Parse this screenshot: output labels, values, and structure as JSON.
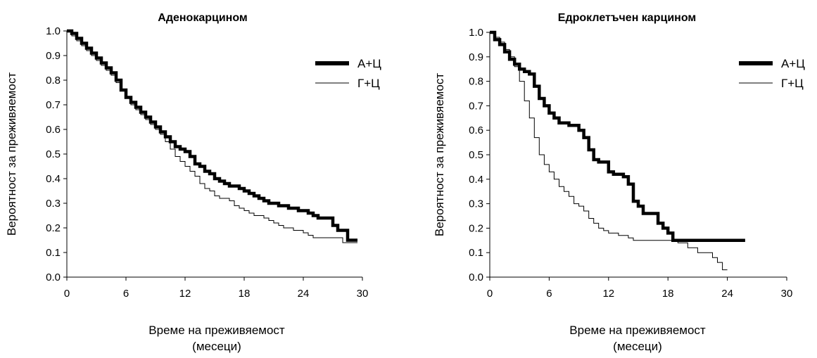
{
  "chart_data": [
    {
      "type": "line",
      "title": "Аденокарцином",
      "xlabel_line1": "Време на преживяемост",
      "xlabel_line2": "(месеци)",
      "ylabel": "Вероятност за преживяемост",
      "xlim": [
        0,
        30
      ],
      "ylim": [
        0.0,
        1.0
      ],
      "xticks": [
        0,
        6,
        12,
        18,
        24,
        30
      ],
      "yticks": [
        0.0,
        0.1,
        0.2,
        0.3,
        0.4,
        0.5,
        0.6,
        0.7,
        0.8,
        0.9,
        1.0
      ],
      "grid": false,
      "legend_position": "top-right",
      "series": [
        {
          "name": "А+Ц",
          "style": "thick",
          "color": "#000000",
          "x": [
            0,
            0.5,
            1.0,
            1.5,
            2,
            2.5,
            3,
            3.5,
            4,
            4.5,
            5,
            5.5,
            6,
            6.5,
            7,
            7.5,
            8,
            8.5,
            9,
            9.5,
            10,
            10.5,
            11,
            11.5,
            12,
            12.5,
            13,
            13.5,
            14,
            14.5,
            15,
            15.5,
            16,
            16.5,
            17,
            17.5,
            18,
            18.5,
            19,
            19.5,
            20,
            20.5,
            21,
            21.5,
            22,
            22.5,
            23,
            23.5,
            24,
            24.5,
            25,
            25.5,
            26,
            27,
            27.5,
            28,
            28.5,
            29,
            29.5
          ],
          "y": [
            1.0,
            0.99,
            0.97,
            0.95,
            0.93,
            0.91,
            0.89,
            0.87,
            0.85,
            0.83,
            0.8,
            0.76,
            0.73,
            0.71,
            0.69,
            0.67,
            0.65,
            0.63,
            0.61,
            0.59,
            0.57,
            0.55,
            0.53,
            0.52,
            0.51,
            0.49,
            0.46,
            0.45,
            0.43,
            0.42,
            0.4,
            0.39,
            0.38,
            0.37,
            0.37,
            0.36,
            0.35,
            0.34,
            0.33,
            0.32,
            0.31,
            0.3,
            0.3,
            0.29,
            0.29,
            0.28,
            0.28,
            0.27,
            0.27,
            0.26,
            0.25,
            0.24,
            0.24,
            0.21,
            0.19,
            0.19,
            0.15,
            0.15,
            0.15
          ]
        },
        {
          "name": "Г+Ц",
          "style": "thin",
          "color": "#000000",
          "x": [
            0,
            0.5,
            1.0,
            1.5,
            2,
            2.5,
            3,
            3.5,
            4,
            4.5,
            5,
            5.5,
            6,
            6.5,
            7,
            7.5,
            8,
            8.5,
            9,
            9.5,
            10,
            10.5,
            11,
            11.5,
            12,
            12.5,
            13,
            13.5,
            14,
            14.5,
            15,
            15.5,
            16,
            16.5,
            17,
            17.5,
            18,
            18.5,
            19,
            19.5,
            20,
            20.5,
            21,
            21.5,
            22,
            22.5,
            23,
            23.5,
            24,
            24.5,
            25,
            26,
            27,
            28,
            29,
            29.5
          ],
          "y": [
            1.0,
            0.98,
            0.96,
            0.94,
            0.92,
            0.9,
            0.88,
            0.86,
            0.84,
            0.82,
            0.79,
            0.76,
            0.73,
            0.7,
            0.68,
            0.66,
            0.64,
            0.62,
            0.6,
            0.58,
            0.55,
            0.52,
            0.49,
            0.47,
            0.45,
            0.43,
            0.41,
            0.38,
            0.36,
            0.35,
            0.33,
            0.32,
            0.32,
            0.31,
            0.29,
            0.28,
            0.27,
            0.26,
            0.25,
            0.25,
            0.24,
            0.23,
            0.22,
            0.21,
            0.2,
            0.2,
            0.19,
            0.19,
            0.18,
            0.17,
            0.16,
            0.16,
            0.16,
            0.14,
            0.14,
            0.14
          ]
        }
      ]
    },
    {
      "type": "line",
      "title": "Едроклетъчен карцином",
      "xlabel_line1": "Време на преживяемост",
      "xlabel_line2": "(месеци)",
      "ylabel": "Вероятност за преживяемост",
      "xlim": [
        0,
        30
      ],
      "ylim": [
        0.0,
        1.0
      ],
      "xticks": [
        0,
        6,
        12,
        18,
        24,
        30
      ],
      "yticks": [
        0.0,
        0.1,
        0.2,
        0.3,
        0.4,
        0.5,
        0.6,
        0.7,
        0.8,
        0.9,
        1.0
      ],
      "grid": false,
      "legend_position": "top-right",
      "series": [
        {
          "name": "А+Ц",
          "style": "thick",
          "color": "#000000",
          "x": [
            0,
            0.5,
            1,
            1.5,
            2,
            2.5,
            3,
            3.5,
            4,
            4.5,
            5,
            5.5,
            6,
            6.5,
            7,
            7.5,
            8,
            8.5,
            9,
            9.5,
            10,
            10.5,
            11,
            11.5,
            12,
            12.5,
            13,
            13.5,
            14,
            14.5,
            15,
            15.5,
            16,
            16.5,
            17,
            17.5,
            18,
            18.5,
            19,
            20,
            21,
            22,
            23,
            24,
            25,
            25.8
          ],
          "y": [
            1.0,
            0.97,
            0.95,
            0.92,
            0.89,
            0.87,
            0.85,
            0.84,
            0.83,
            0.78,
            0.73,
            0.7,
            0.67,
            0.65,
            0.63,
            0.63,
            0.62,
            0.62,
            0.6,
            0.57,
            0.52,
            0.48,
            0.47,
            0.47,
            0.43,
            0.42,
            0.42,
            0.41,
            0.38,
            0.31,
            0.29,
            0.26,
            0.26,
            0.26,
            0.22,
            0.2,
            0.18,
            0.15,
            0.15,
            0.15,
            0.15,
            0.15,
            0.15,
            0.15,
            0.15,
            0.15
          ]
        },
        {
          "name": "Г+Ц",
          "style": "thin",
          "color": "#000000",
          "x": [
            0,
            0.5,
            1,
            1.5,
            2,
            2.5,
            3,
            3.5,
            4,
            4.5,
            5,
            5.5,
            6,
            6.5,
            7,
            7.5,
            8,
            8.5,
            9,
            9.5,
            10,
            10.5,
            11,
            11.5,
            12,
            12.5,
            13,
            13.5,
            14,
            14.5,
            15,
            16,
            17,
            18,
            19,
            20,
            21,
            21.5,
            22,
            22.5,
            23,
            23.5,
            24
          ],
          "y": [
            1.0,
            0.98,
            0.96,
            0.93,
            0.9,
            0.86,
            0.8,
            0.72,
            0.65,
            0.57,
            0.5,
            0.46,
            0.43,
            0.4,
            0.37,
            0.35,
            0.33,
            0.3,
            0.29,
            0.27,
            0.24,
            0.22,
            0.2,
            0.19,
            0.18,
            0.18,
            0.17,
            0.17,
            0.16,
            0.15,
            0.15,
            0.15,
            0.15,
            0.15,
            0.14,
            0.12,
            0.1,
            0.1,
            0.1,
            0.08,
            0.06,
            0.03,
            0.03
          ]
        }
      ]
    }
  ]
}
